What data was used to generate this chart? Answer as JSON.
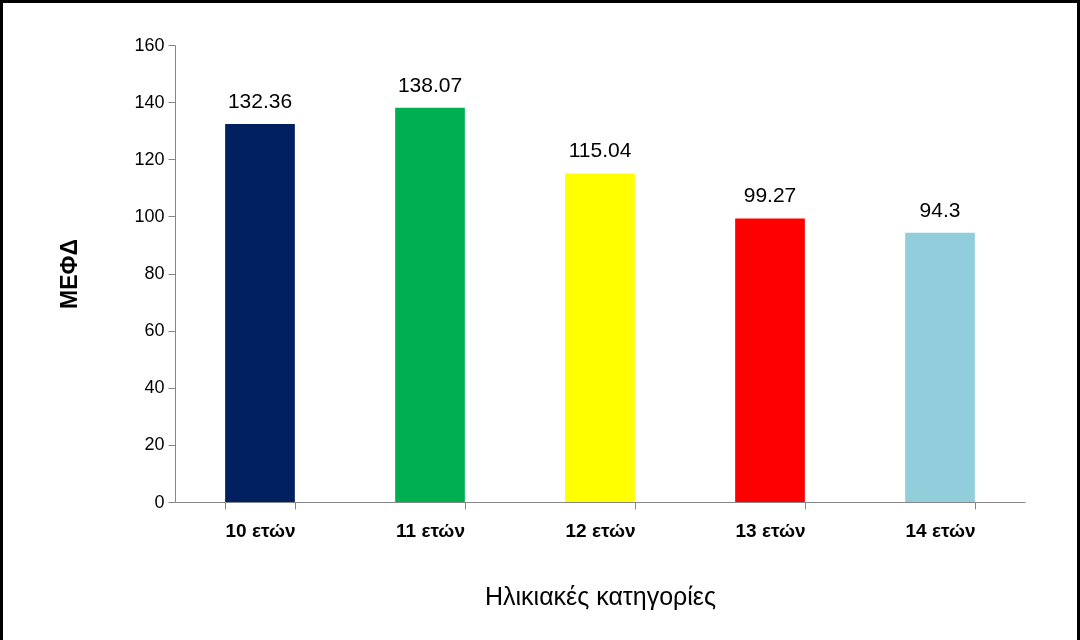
{
  "chart_data": {
    "type": "bar",
    "xlabel": "Ηλικιακές κατηγορίες",
    "ylabel": "ΜΕΦΔ",
    "categories": [
      "10 ετών",
      "11 ετών",
      "12 ετών",
      "13 ετών",
      "14 ετών"
    ],
    "values": [
      132.36,
      138.07,
      115.04,
      99.27,
      94.3
    ],
    "colors": [
      "#002060",
      "#00b050",
      "#ffff00",
      "#ff0000",
      "#92cddc"
    ],
    "ylim": [
      0,
      160
    ],
    "yticks": [
      0,
      20,
      40,
      60,
      80,
      100,
      120,
      140,
      160
    ],
    "grid": false,
    "data_labels": true
  }
}
